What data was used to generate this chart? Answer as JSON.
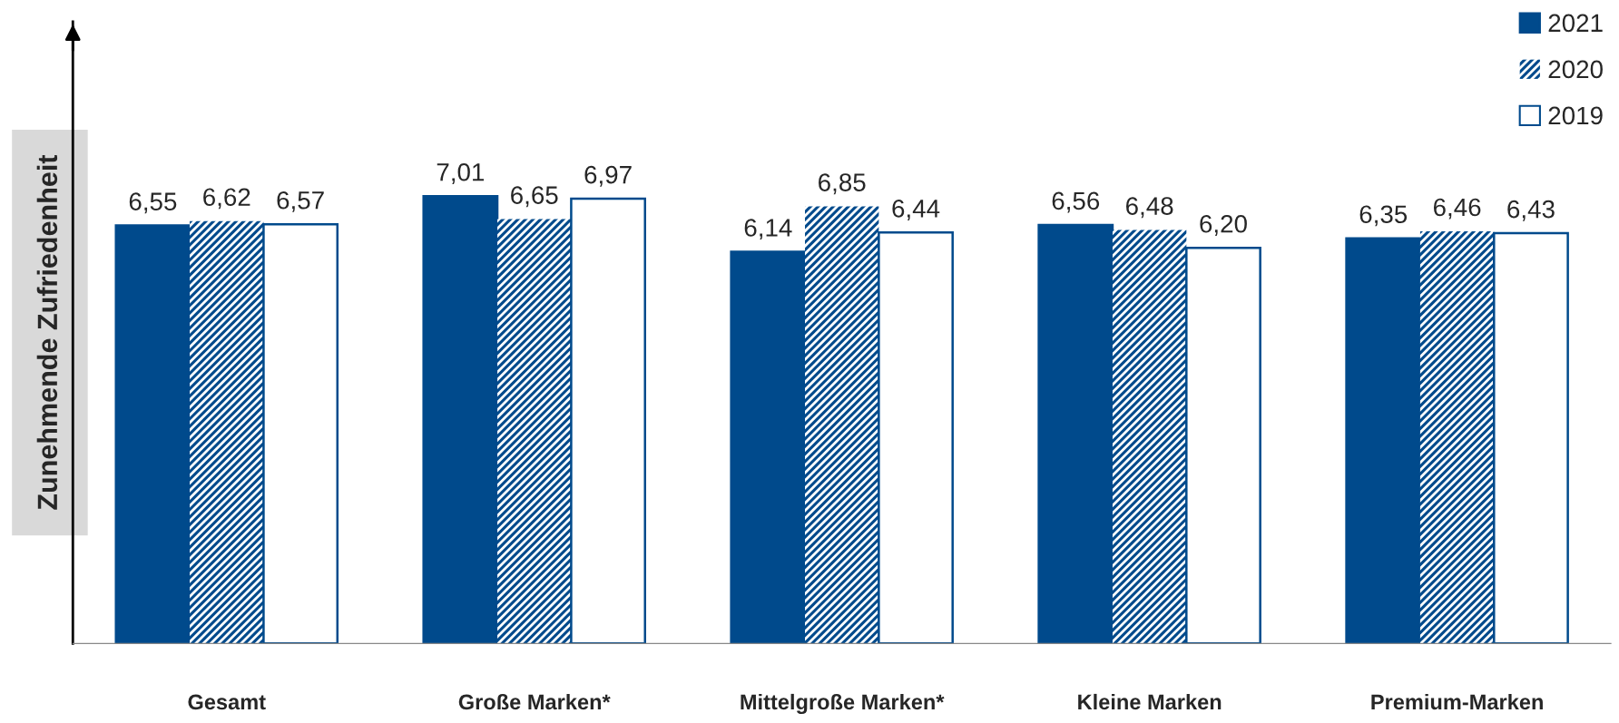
{
  "chart_data": {
    "type": "bar",
    "ylabel": "Zunehmende Zufriedenheit",
    "categories": [
      "Gesamt",
      "Große Marken*",
      "Mittelgroße Marken*",
      "Kleine Marken",
      "Premium-Marken"
    ],
    "series": [
      {
        "name": "2021",
        "color": "#004a8c",
        "values": [
          6.55,
          7.01,
          6.14,
          6.56,
          6.35
        ],
        "value_labels": [
          "6,55",
          "7,01",
          "6,14",
          "6,56",
          "6,35"
        ]
      },
      {
        "name": "2020",
        "color": "#004a8c",
        "values": [
          6.62,
          6.65,
          6.85,
          6.48,
          6.46
        ],
        "value_labels": [
          "6,62",
          "6,65",
          "6,85",
          "6,48",
          "6,46"
        ]
      },
      {
        "name": "2019",
        "color": "#004a8c",
        "values": [
          6.57,
          6.97,
          6.44,
          6.2,
          6.43
        ],
        "value_labels": [
          "6,57",
          "6,97",
          "6,44",
          "6,20",
          "6,43"
        ]
      }
    ],
    "legend": "top right",
    "grid": false
  }
}
